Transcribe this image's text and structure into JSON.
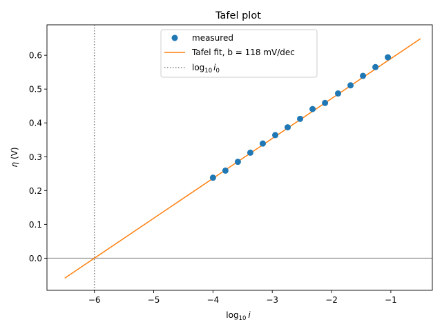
{
  "chart_data": {
    "type": "line",
    "title": "Tafel plot",
    "xlabel_main": "log",
    "xlabel_sub": "10",
    "xlabel_var": "i",
    "ylabel_var": "η",
    "ylabel_unit": "(V)",
    "xlim": [
      -6.8,
      -0.3
    ],
    "ylim": [
      -0.095,
      0.69
    ],
    "x_ticks": [
      -6,
      -5,
      -4,
      -3,
      -2,
      -1
    ],
    "x_tick_labels": [
      "−6",
      "−5",
      "−4",
      "−3",
      "−2",
      "−1"
    ],
    "y_ticks": [
      0.0,
      0.1,
      0.2,
      0.3,
      0.4,
      0.5,
      0.6
    ],
    "y_tick_labels": [
      "0.0",
      "0.1",
      "0.2",
      "0.3",
      "0.4",
      "0.5",
      "0.6"
    ],
    "grid": false,
    "legend_position": "top-center",
    "series": [
      {
        "name": "measured",
        "kind": "scatter",
        "color": "#1f77b4",
        "x": [
          -4.0,
          -3.79,
          -3.58,
          -3.37,
          -3.16,
          -2.95,
          -2.74,
          -2.53,
          -2.32,
          -2.11,
          -1.89,
          -1.68,
          -1.47,
          -1.26,
          -1.05
        ],
        "y": [
          0.238,
          0.259,
          0.285,
          0.312,
          0.339,
          0.364,
          0.387,
          0.412,
          0.441,
          0.459,
          0.487,
          0.511,
          0.539,
          0.565,
          0.594
        ]
      },
      {
        "name": "Tafel fit, b = 118 mV/dec",
        "kind": "line",
        "color": "#ff7f0e",
        "x": [
          -6.5,
          -0.5
        ],
        "y": [
          -0.059,
          0.649
        ]
      },
      {
        "name_main": "log",
        "name_sub": "10",
        "name_var": "i",
        "name_var_sub": "0",
        "kind": "vline",
        "color": "#7f7f7f",
        "x": -6
      }
    ],
    "hline": {
      "y": 0.0,
      "color": "#808080"
    }
  }
}
